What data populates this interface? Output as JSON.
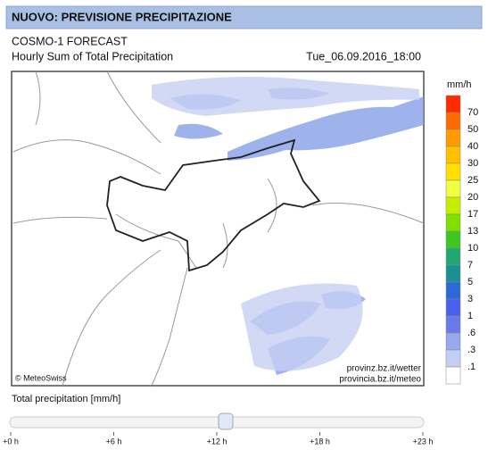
{
  "header": {
    "title": "NUOVO: PREVISIONE PRECIPITAZIONE"
  },
  "map": {
    "model": "COSMO-1 FORECAST",
    "product": "Hourly Sum of Total Precipitation",
    "timestamp": "Tue_06.09.2016_18:00",
    "copyright": "© MeteoSwiss",
    "links": [
      "provinz.bz.it/wetter",
      "provincia.bz.it/meteo"
    ]
  },
  "legend": {
    "unit": "mm/h",
    "labels": [
      "70",
      "50",
      "40",
      "30",
      "25",
      "20",
      "17",
      "13",
      "10",
      "7",
      "5",
      "3",
      "1",
      ".6",
      ".3",
      ".1"
    ],
    "colors": [
      "#ff2a00",
      "#ff6a00",
      "#ff9a00",
      "#ffc000",
      "#ffe000",
      "#f0ff40",
      "#c4f000",
      "#80e000",
      "#3cc820",
      "#20a870",
      "#1a9090",
      "#2a6ad8",
      "#4a60ea",
      "#6a7ae8",
      "#98a8ee",
      "#c4cef4",
      "#ffffff"
    ]
  },
  "slider": {
    "label": "Total precipitation [mm/h]",
    "ticks": [
      "+0 h",
      "+6 h",
      "+12 h",
      "+18 h",
      "+23 h"
    ]
  }
}
